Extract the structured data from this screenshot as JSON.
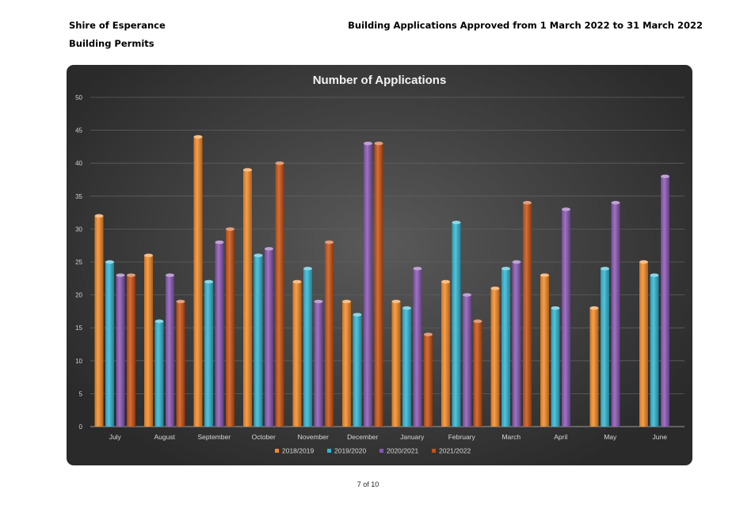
{
  "header": {
    "organisation": "Shire of Esperance",
    "department": "Building Permits",
    "report_title": "Building Applications  Approved from 1 March 2022 to 31 March 2022"
  },
  "footer": {
    "page": "7 of 10"
  },
  "colors": {
    "panel_background": "#3f3f3f",
    "series": [
      "#f58a25",
      "#30b6d2",
      "#8956b3",
      "#c9500f"
    ]
  },
  "chart_data": {
    "type": "bar",
    "title": "Number of Applications",
    "xlabel": "",
    "ylabel": "",
    "ylim": [
      0,
      50
    ],
    "yticks": [
      0,
      5,
      10,
      15,
      20,
      25,
      30,
      35,
      40,
      45,
      50
    ],
    "grid": true,
    "legend_position": "bottom",
    "categories": [
      "July",
      "August",
      "September",
      "October",
      "November",
      "December",
      "January",
      "February",
      "March",
      "April",
      "May",
      "June"
    ],
    "series": [
      {
        "name": "2018/2019",
        "values": [
          32,
          26,
          44,
          39,
          22,
          19,
          19,
          22,
          21,
          23,
          18,
          25
        ]
      },
      {
        "name": "2019/2020",
        "values": [
          25,
          16,
          22,
          26,
          24,
          17,
          18,
          31,
          24,
          18,
          24,
          23
        ]
      },
      {
        "name": "2020/2021",
        "values": [
          23,
          23,
          28,
          27,
          19,
          43,
          24,
          20,
          25,
          33,
          34,
          38
        ]
      },
      {
        "name": "2021/2022",
        "values": [
          23,
          19,
          30,
          40,
          28,
          43,
          14,
          16,
          34,
          null,
          null,
          null
        ]
      }
    ]
  }
}
